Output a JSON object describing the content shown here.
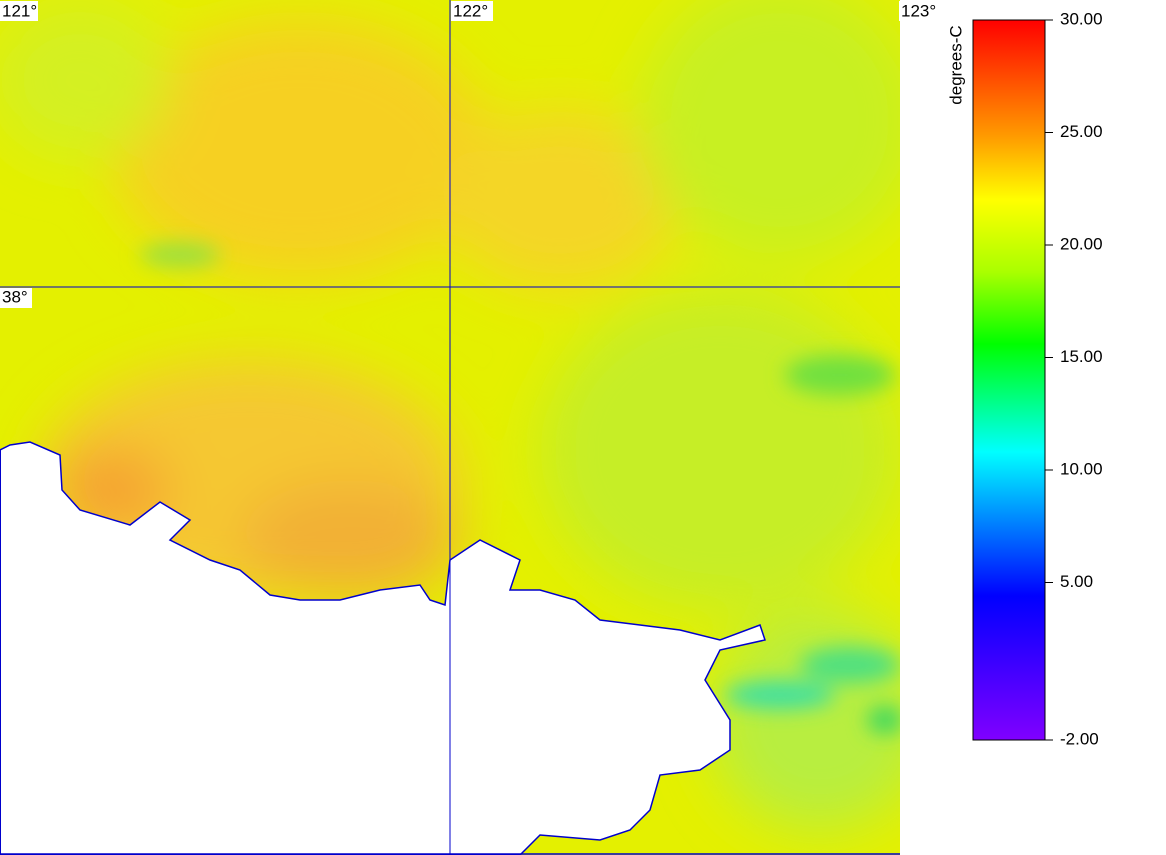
{
  "map": {
    "lon_labels": [
      "121°",
      "122°",
      "123°"
    ],
    "lat_labels": [
      "38°"
    ]
  },
  "colorbar": {
    "label": "degrees-C",
    "ticks": [
      {
        "value": 30,
        "label": "30.00"
      },
      {
        "value": 25,
        "label": "25.00"
      },
      {
        "value": 20,
        "label": "20.00"
      },
      {
        "value": 15,
        "label": "15.00"
      },
      {
        "value": 10,
        "label": "10.00"
      },
      {
        "value": 5,
        "label": "5.00"
      },
      {
        "value": -2,
        "label": "-2.00"
      }
    ]
  }
}
